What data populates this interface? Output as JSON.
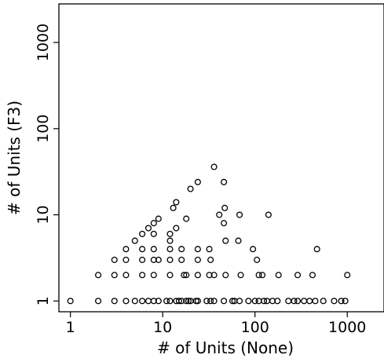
{
  "chart_data": {
    "type": "scatter",
    "xlabel": "# of Units (None)",
    "ylabel": "# of Units (F3)",
    "xscale": "log",
    "yscale": "log",
    "xlim": [
      0.75,
      2500
    ],
    "ylim": [
      0.75,
      2800
    ],
    "xticks": [
      {
        "value": 1,
        "label": "1"
      },
      {
        "value": 10,
        "label": "10"
      },
      {
        "value": 100,
        "label": "100"
      },
      {
        "value": 1000,
        "label": "1000"
      }
    ],
    "yticks": [
      {
        "value": 1,
        "label": "1"
      },
      {
        "value": 10,
        "label": "10"
      },
      {
        "value": 100,
        "label": "100"
      },
      {
        "value": 1000,
        "label": "1000"
      }
    ],
    "grid": false,
    "marker": "open-circle",
    "color": "#000000",
    "points": [
      {
        "x": 1,
        "y": 1
      },
      {
        "x": 2,
        "y": 1
      },
      {
        "x": 3,
        "y": 1
      },
      {
        "x": 4,
        "y": 1
      },
      {
        "x": 5,
        "y": 1
      },
      {
        "x": 6,
        "y": 1
      },
      {
        "x": 7,
        "y": 1
      },
      {
        "x": 8,
        "y": 1
      },
      {
        "x": 9,
        "y": 1
      },
      {
        "x": 11,
        "y": 1
      },
      {
        "x": 12,
        "y": 1
      },
      {
        "x": 14,
        "y": 1
      },
      {
        "x": 15,
        "y": 1
      },
      {
        "x": 16,
        "y": 1
      },
      {
        "x": 18,
        "y": 1
      },
      {
        "x": 19,
        "y": 1
      },
      {
        "x": 20,
        "y": 1
      },
      {
        "x": 23,
        "y": 1
      },
      {
        "x": 24,
        "y": 1
      },
      {
        "x": 30,
        "y": 1
      },
      {
        "x": 33,
        "y": 1
      },
      {
        "x": 36,
        "y": 1
      },
      {
        "x": 46,
        "y": 1
      },
      {
        "x": 57,
        "y": 1
      },
      {
        "x": 60,
        "y": 1
      },
      {
        "x": 68,
        "y": 1
      },
      {
        "x": 85,
        "y": 1
      },
      {
        "x": 100,
        "y": 1
      },
      {
        "x": 110,
        "y": 1
      },
      {
        "x": 125,
        "y": 1
      },
      {
        "x": 135,
        "y": 1
      },
      {
        "x": 155,
        "y": 1
      },
      {
        "x": 175,
        "y": 1
      },
      {
        "x": 230,
        "y": 1
      },
      {
        "x": 265,
        "y": 1
      },
      {
        "x": 290,
        "y": 1
      },
      {
        "x": 340,
        "y": 1
      },
      {
        "x": 390,
        "y": 1
      },
      {
        "x": 450,
        "y": 1
      },
      {
        "x": 550,
        "y": 1
      },
      {
        "x": 720,
        "y": 1
      },
      {
        "x": 860,
        "y": 1
      },
      {
        "x": 950,
        "y": 1
      },
      {
        "x": 2,
        "y": 2
      },
      {
        "x": 3,
        "y": 2
      },
      {
        "x": 4,
        "y": 2
      },
      {
        "x": 6,
        "y": 2
      },
      {
        "x": 8,
        "y": 2
      },
      {
        "x": 12,
        "y": 2
      },
      {
        "x": 17,
        "y": 2
      },
      {
        "x": 18,
        "y": 2
      },
      {
        "x": 24,
        "y": 2
      },
      {
        "x": 32,
        "y": 2
      },
      {
        "x": 36,
        "y": 2
      },
      {
        "x": 48,
        "y": 2
      },
      {
        "x": 70,
        "y": 2
      },
      {
        "x": 110,
        "y": 2
      },
      {
        "x": 120,
        "y": 2
      },
      {
        "x": 180,
        "y": 2
      },
      {
        "x": 290,
        "y": 2
      },
      {
        "x": 420,
        "y": 2
      },
      {
        "x": 1000,
        "y": 2
      },
      {
        "x": 3,
        "y": 3
      },
      {
        "x": 4,
        "y": 3
      },
      {
        "x": 6,
        "y": 3
      },
      {
        "x": 8,
        "y": 3
      },
      {
        "x": 9,
        "y": 3
      },
      {
        "x": 12,
        "y": 3
      },
      {
        "x": 16,
        "y": 3
      },
      {
        "x": 24,
        "y": 3
      },
      {
        "x": 33,
        "y": 3
      },
      {
        "x": 105,
        "y": 3
      },
      {
        "x": 4,
        "y": 4
      },
      {
        "x": 6,
        "y": 4
      },
      {
        "x": 8,
        "y": 4
      },
      {
        "x": 12,
        "y": 4
      },
      {
        "x": 16,
        "y": 4
      },
      {
        "x": 24,
        "y": 4
      },
      {
        "x": 32,
        "y": 4
      },
      {
        "x": 95,
        "y": 4
      },
      {
        "x": 470,
        "y": 4
      },
      {
        "x": 5,
        "y": 5
      },
      {
        "x": 12,
        "y": 5
      },
      {
        "x": 48,
        "y": 5
      },
      {
        "x": 66,
        "y": 5
      },
      {
        "x": 6,
        "y": 6
      },
      {
        "x": 8,
        "y": 6
      },
      {
        "x": 12,
        "y": 6
      },
      {
        "x": 7,
        "y": 7
      },
      {
        "x": 14,
        "y": 7
      },
      {
        "x": 8,
        "y": 8
      },
      {
        "x": 46,
        "y": 8
      },
      {
        "x": 9,
        "y": 9
      },
      {
        "x": 18,
        "y": 9
      },
      {
        "x": 13,
        "y": 12
      },
      {
        "x": 47,
        "y": 12
      },
      {
        "x": 14,
        "y": 14
      },
      {
        "x": 41,
        "y": 10
      },
      {
        "x": 68,
        "y": 10
      },
      {
        "x": 140,
        "y": 10
      },
      {
        "x": 20,
        "y": 20
      },
      {
        "x": 24,
        "y": 24
      },
      {
        "x": 46,
        "y": 24
      },
      {
        "x": 36,
        "y": 36
      }
    ]
  }
}
